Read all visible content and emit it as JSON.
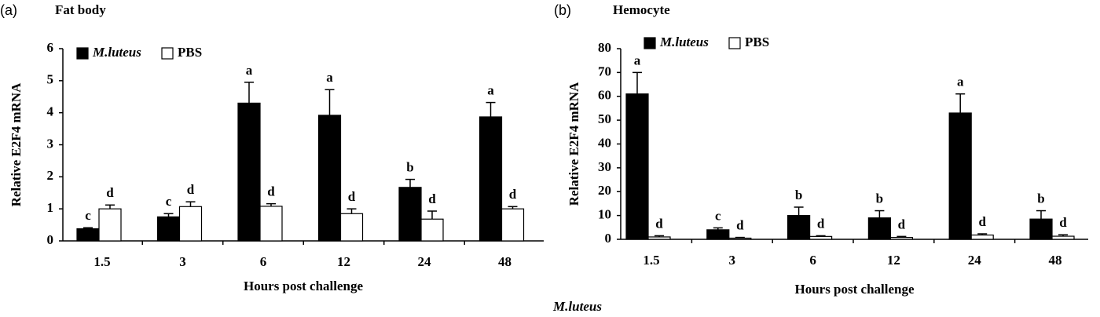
{
  "chart_data": [
    {
      "type": "bar",
      "panel": "(a)",
      "title": "Fat body",
      "ylabel": "Relative E2F4 mRNA",
      "xlabel": "Hours post challenge",
      "categories": [
        "1.5",
        "3",
        "6",
        "12",
        "24",
        "48"
      ],
      "ylim": [
        0,
        6
      ],
      "yticks": [
        0,
        1,
        2,
        3,
        4,
        5,
        6
      ],
      "series": [
        {
          "name": "M.luteus",
          "color": "#000000",
          "values": [
            0.38,
            0.75,
            4.3,
            3.92,
            1.67,
            3.87
          ],
          "errors": [
            0.03,
            0.1,
            0.65,
            0.8,
            0.25,
            0.45
          ],
          "labels": [
            "c",
            "c",
            "a",
            "a",
            "b",
            "a"
          ]
        },
        {
          "name": "PBS",
          "color": "#ffffff",
          "values": [
            1.0,
            1.07,
            1.08,
            0.85,
            0.68,
            1.0
          ],
          "errors": [
            0.12,
            0.15,
            0.08,
            0.15,
            0.25,
            0.07
          ],
          "labels": [
            "d",
            "d",
            "d",
            "d",
            "d",
            "d"
          ]
        }
      ]
    },
    {
      "type": "bar",
      "panel": "(b)",
      "title": "Hemocyte",
      "ylabel": "Relative E2F4 mRNA",
      "xlabel": "Hours post challenge",
      "categories": [
        "1.5",
        "3",
        "6",
        "12",
        "24",
        "48"
      ],
      "ylim": [
        0,
        80
      ],
      "yticks": [
        0,
        10,
        20,
        30,
        40,
        50,
        60,
        70,
        80
      ],
      "series": [
        {
          "name": "M.luteus",
          "color": "#000000",
          "values": [
            61,
            4,
            10,
            9,
            53,
            8.5
          ],
          "errors": [
            9,
            0.8,
            3.5,
            3,
            8,
            3.5
          ],
          "labels": [
            "a",
            "c",
            "b",
            "b",
            "a",
            "b"
          ]
        },
        {
          "name": "PBS",
          "color": "#ffffff",
          "values": [
            1,
            0.5,
            1.2,
            0.8,
            1.8,
            1.3
          ],
          "errors": [
            0.5,
            0.3,
            0.3,
            0.4,
            0.5,
            0.6
          ],
          "labels": [
            "d",
            "d",
            "d",
            "d",
            "d",
            "d"
          ]
        }
      ]
    }
  ],
  "footer": "M.luteus"
}
